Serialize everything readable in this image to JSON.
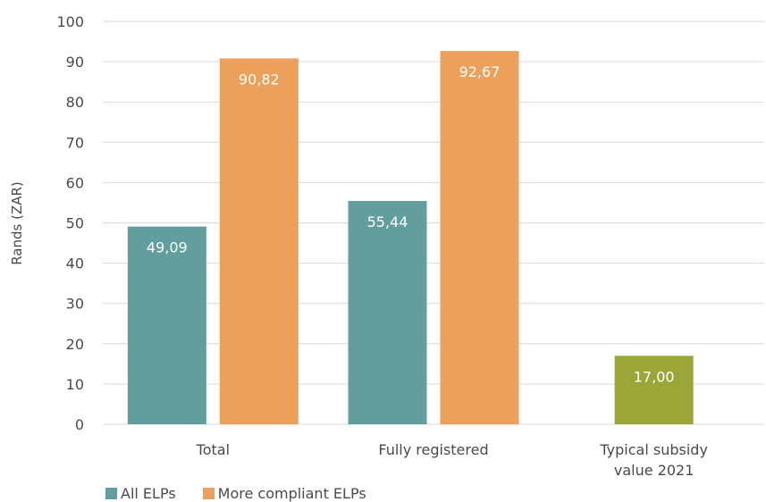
{
  "chart_data": {
    "type": "bar",
    "categories": [
      [
        "Total"
      ],
      [
        "Fully registered"
      ],
      [
        "Typical subsidy",
        "value 2021"
      ]
    ],
    "series": [
      {
        "name": "All ELPs",
        "color": "#629e9e",
        "values": [
          49.09,
          55.44,
          null
        ],
        "labels": [
          "49,09",
          "55,44",
          null
        ]
      },
      {
        "name": "More compliant ELPs",
        "color": "#eba05b",
        "values": [
          90.82,
          92.67,
          null
        ],
        "labels": [
          "90,82",
          "92,67",
          null
        ]
      },
      {
        "name": "",
        "color": "#9aa738",
        "values": [
          null,
          null,
          17.0
        ],
        "labels": [
          null,
          null,
          "17,00"
        ]
      }
    ],
    "ylabel": "Rands (ZAR)",
    "ylim": [
      0,
      100
    ],
    "yticks": [
      0,
      10,
      20,
      30,
      40,
      50,
      60,
      70,
      80,
      90,
      100
    ],
    "grid": true,
    "legend_position": "bottom-left"
  },
  "legend": [
    {
      "label": "All ELPs",
      "color": "#629e9e"
    },
    {
      "label": "More compliant ELPs",
      "color": "#eba05b"
    }
  ]
}
